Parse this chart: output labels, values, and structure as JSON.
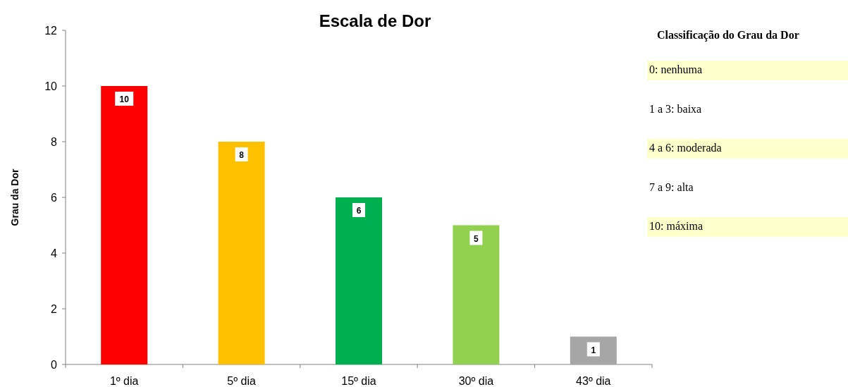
{
  "chart_data": {
    "type": "bar",
    "title": "Escala de Dor",
    "ylabel": "Grau da Dor",
    "categories": [
      "1º dia",
      "5º dia",
      "15º dia",
      "30º dia",
      "43º dia"
    ],
    "values": [
      10,
      8,
      6,
      5,
      1
    ],
    "colors": [
      "#ff0000",
      "#ffc000",
      "#00b050",
      "#92d050",
      "#a6a6a6"
    ],
    "ylim": [
      0,
      12
    ],
    "yticks": [
      0,
      2,
      4,
      6,
      8,
      10,
      12
    ],
    "data_labels": true,
    "annotations": [
      "Classificação do Grau da Dor",
      "0: nenhuma",
      "1 a 3: baixa",
      "4 a 6: moderada",
      "7 a 9: alta",
      "10: máxima"
    ]
  }
}
